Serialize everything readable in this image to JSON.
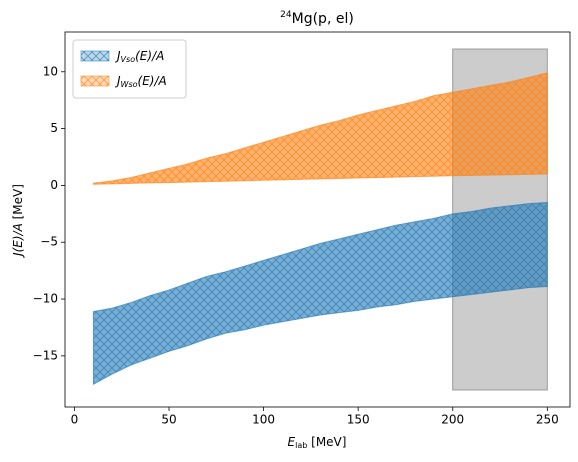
{
  "chart_data": {
    "type": "band",
    "title": {
      "sup": "24",
      "main": "Mg(p, el)"
    },
    "xlabel": {
      "main": "E",
      "sub": "lab",
      "rest": " [MeV]"
    },
    "ylabel": {
      "main": "J(E)/A",
      "rest": " [MeV]"
    },
    "x": [
      10,
      20,
      30,
      40,
      50,
      60,
      70,
      80,
      90,
      100,
      110,
      120,
      130,
      140,
      150,
      160,
      170,
      180,
      190,
      200,
      210,
      220,
      230,
      240,
      250
    ],
    "series": [
      {
        "name": {
          "main": "J",
          "sub": "Vso",
          "rest": "(E)/A"
        },
        "color": "#1f77b4",
        "upper": [
          -11.1,
          -10.8,
          -10.3,
          -9.7,
          -9.2,
          -8.6,
          -8.0,
          -7.6,
          -7.1,
          -6.6,
          -6.1,
          -5.6,
          -5.1,
          -4.7,
          -4.3,
          -3.9,
          -3.5,
          -3.2,
          -2.9,
          -2.5,
          -2.3,
          -2.0,
          -1.8,
          -1.6,
          -1.5
        ],
        "lower": [
          -17.5,
          -16.6,
          -15.8,
          -15.2,
          -14.6,
          -14.1,
          -13.5,
          -13.0,
          -12.7,
          -12.3,
          -12.0,
          -11.7,
          -11.4,
          -11.2,
          -11.0,
          -10.7,
          -10.5,
          -10.2,
          -10.0,
          -9.8,
          -9.6,
          -9.4,
          -9.2,
          -9.0,
          -8.9
        ]
      },
      {
        "name": {
          "main": "J",
          "sub": "Wso",
          "rest": "(E)/A"
        },
        "color": "#ff7f0e",
        "upper": [
          0.2,
          0.4,
          0.7,
          1.1,
          1.5,
          1.9,
          2.4,
          2.8,
          3.3,
          3.8,
          4.3,
          4.8,
          5.3,
          5.7,
          6.2,
          6.6,
          7.0,
          7.4,
          7.9,
          8.2,
          8.5,
          8.8,
          9.1,
          9.5,
          9.9
        ],
        "lower": [
          0.1,
          0.14,
          0.18,
          0.22,
          0.25,
          0.29,
          0.33,
          0.37,
          0.41,
          0.45,
          0.49,
          0.53,
          0.57,
          0.61,
          0.65,
          0.69,
          0.73,
          0.77,
          0.81,
          0.85,
          0.88,
          0.91,
          0.94,
          0.97,
          1.0
        ]
      }
    ],
    "span": {
      "x": [
        200,
        250
      ],
      "y": [
        -18,
        12
      ],
      "color": "#999999"
    },
    "xlim": [
      -5,
      262
    ],
    "ylim": [
      -19.5,
      13.5
    ],
    "xticks": [
      0,
      50,
      100,
      150,
      200,
      250
    ],
    "yticks": [
      {
        "value": -15,
        "label": "−15"
      },
      {
        "value": -10,
        "label": "−10"
      },
      {
        "value": -5,
        "label": "−5"
      },
      0,
      5,
      10
    ],
    "legend": "upper left"
  }
}
